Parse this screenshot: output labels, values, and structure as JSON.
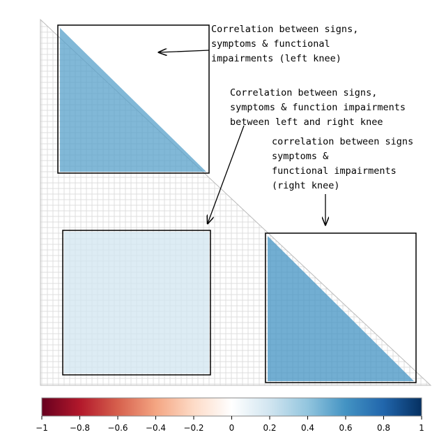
{
  "chart_data": {
    "type": "correlation-matrix",
    "colorbar": {
      "lim": [
        -1,
        1
      ],
      "ticks": [
        {
          "value": -1,
          "label": "−1"
        },
        {
          "value": -0.8,
          "label": "−0.8"
        },
        {
          "value": -0.6,
          "label": "−0.6"
        },
        {
          "value": -0.4,
          "label": "−0.4"
        },
        {
          "value": -0.2,
          "label": "−0.2"
        },
        0,
        0.2,
        0.4,
        0.6,
        0.8,
        1
      ]
    },
    "regions": [
      {
        "value": 0.55
      },
      {
        "value": 0.2
      },
      {
        "value": 0.6
      }
    ],
    "annotations": [
      {
        "lines": [
          "Correlation between signs,",
          "symptoms & functional",
          "impairments (left knee)"
        ]
      },
      {
        "lines": [
          "Correlation between signs,",
          "symptoms & function impairments",
          "between left and right knee"
        ]
      },
      {
        "lines": [
          "correlation between signs",
          "symptoms &",
          "functional impairments",
          "(right knee)"
        ]
      }
    ]
  }
}
